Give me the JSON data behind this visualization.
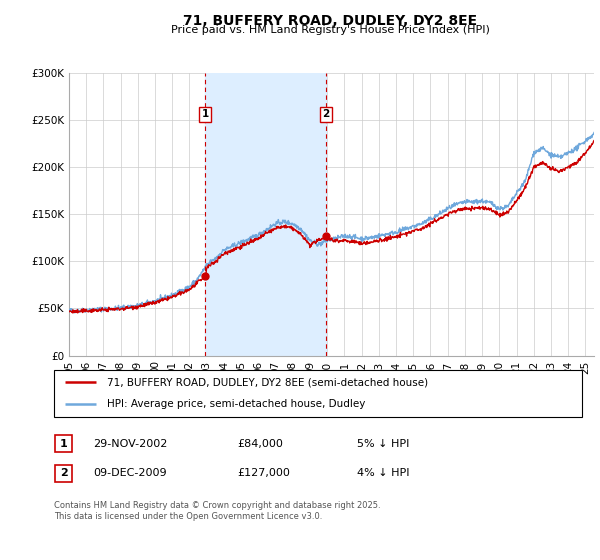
{
  "title": "71, BUFFERY ROAD, DUDLEY, DY2 8EE",
  "subtitle": "Price paid vs. HM Land Registry's House Price Index (HPI)",
  "legend_line1": "71, BUFFERY ROAD, DUDLEY, DY2 8EE (semi-detached house)",
  "legend_line2": "HPI: Average price, semi-detached house, Dudley",
  "sale1_label": "1",
  "sale1_date": "29-NOV-2002",
  "sale1_price": "£84,000",
  "sale1_hpi": "5% ↓ HPI",
  "sale1_x": 2002.91,
  "sale1_y": 84000,
  "sale2_label": "2",
  "sale2_date": "09-DEC-2009",
  "sale2_price": "£127,000",
  "sale2_hpi": "4% ↓ HPI",
  "sale2_x": 2009.94,
  "sale2_y": 127000,
  "shade_x1": 2002.91,
  "shade_x2": 2009.94,
  "footer": "Contains HM Land Registry data © Crown copyright and database right 2025.\nThis data is licensed under the Open Government Licence v3.0.",
  "hpi_color": "#6fa8dc",
  "price_color": "#cc0000",
  "shade_color": "#ddeeff",
  "background_color": "#ffffff",
  "grid_color": "#cccccc",
  "ylim": [
    0,
    300000
  ],
  "xlim_start": 1995,
  "xlim_end": 2025.5,
  "yticks": [
    0,
    50000,
    100000,
    150000,
    200000,
    250000,
    300000
  ],
  "ytick_labels": [
    "£0",
    "£50K",
    "£100K",
    "£150K",
    "£200K",
    "£250K",
    "£300K"
  ],
  "xtick_years": [
    1995,
    1996,
    1997,
    1998,
    1999,
    2000,
    2001,
    2002,
    2003,
    2004,
    2005,
    2006,
    2007,
    2008,
    2009,
    2010,
    2011,
    2012,
    2013,
    2014,
    2015,
    2016,
    2017,
    2018,
    2019,
    2020,
    2021,
    2022,
    2023,
    2024,
    2025
  ],
  "xtick_labels": [
    "95",
    "96",
    "97",
    "98",
    "99",
    "00",
    "01",
    "02",
    "03",
    "04",
    "05",
    "06",
    "07",
    "08",
    "09",
    "10",
    "11",
    "12",
    "13",
    "14",
    "15",
    "16",
    "17",
    "18",
    "19",
    "20",
    "21",
    "22",
    "23",
    "24",
    "25"
  ]
}
